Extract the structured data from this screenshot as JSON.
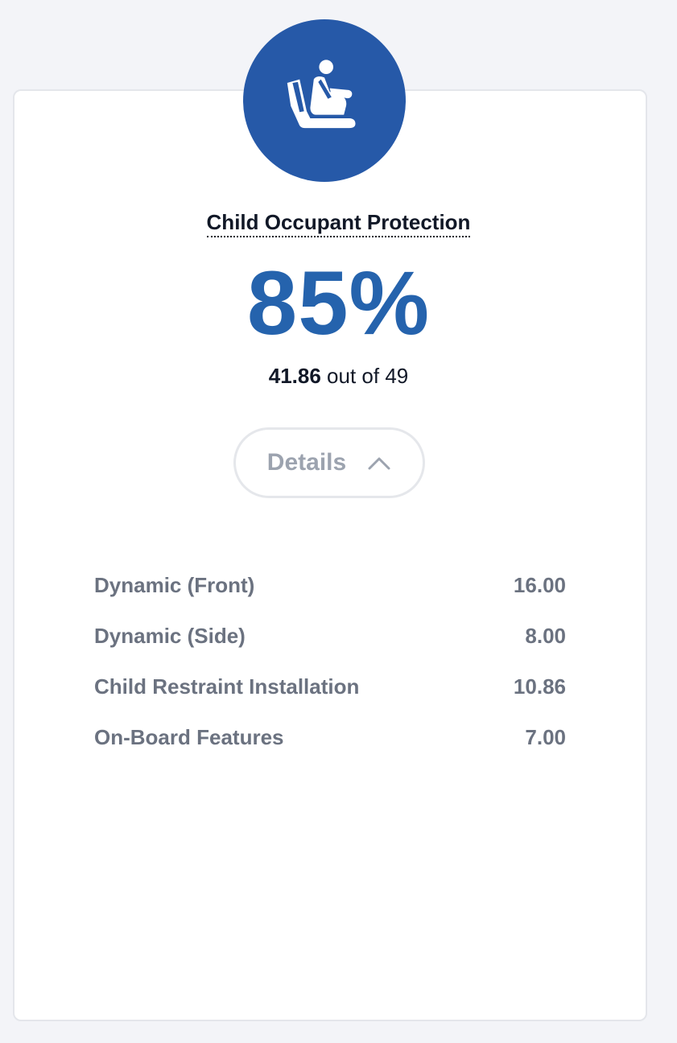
{
  "card": {
    "icon": "child-seat-icon",
    "title": "Child Occupant Protection",
    "percent": "85%",
    "score_value": "41.86",
    "score_suffix": " out of 49",
    "details_label": "Details",
    "details_icon": "chevron-up-icon",
    "rows": [
      {
        "label": "Dynamic (Front)",
        "value": "16.00"
      },
      {
        "label": "Dynamic (Side)",
        "value": "8.00"
      },
      {
        "label": "Child Restraint Installation",
        "value": "10.86"
      },
      {
        "label": "On-Board Features",
        "value": "7.00"
      }
    ]
  },
  "colors": {
    "accent": "#2563ad",
    "icon_circle": "#2659a8",
    "background": "#f3f4f8",
    "text_dark": "#111827",
    "text_muted": "#6b7280"
  }
}
